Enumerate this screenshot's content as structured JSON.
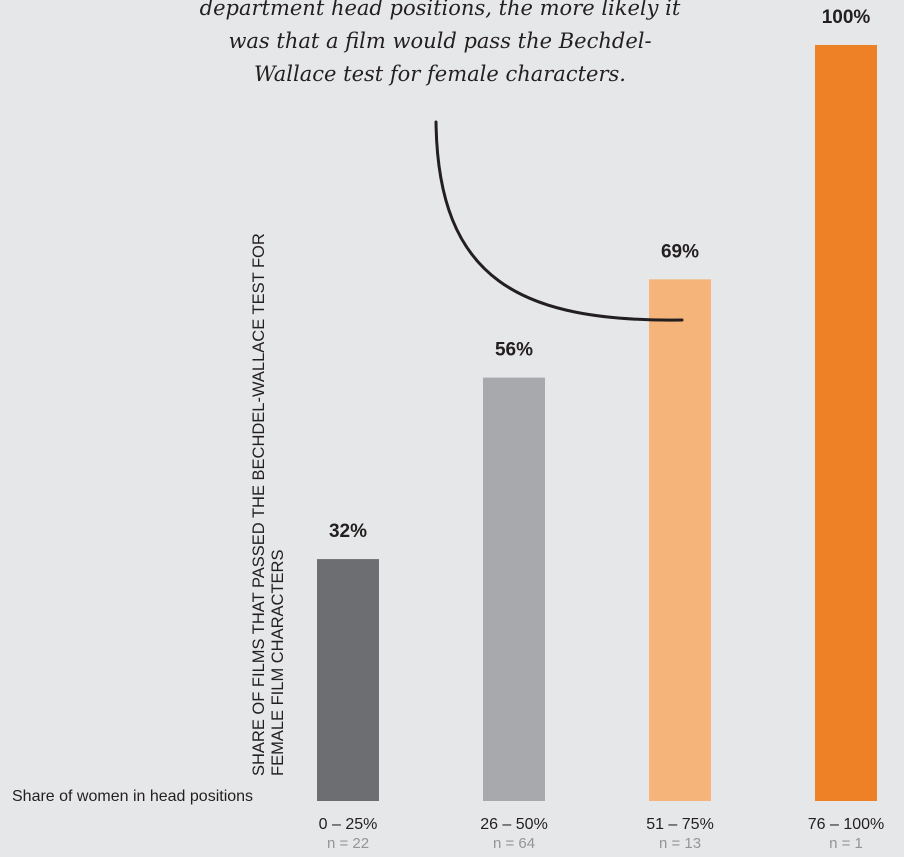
{
  "annotation": {
    "lines": [
      "department head positions, the more likely it",
      "was that a film would pass the Bechdel-",
      "Wallace test for female characters."
    ]
  },
  "chart_data": {
    "type": "bar",
    "title": "",
    "ylabel": "SHARE OF FILMS THAT PASSED THE BECHDEL-WALLACE TEST FOR FEMALE FILM CHARACTERS",
    "xlabel": "Share of women in head positions",
    "categories": [
      "0 – 25%",
      "26 – 50%",
      "51 – 75%",
      "76 – 100%"
    ],
    "sample_sizes": [
      "n = 22",
      "n = 64",
      "n = 13",
      "n = 1"
    ],
    "values": [
      32,
      56,
      69,
      100
    ],
    "value_labels": [
      "32%",
      "56%",
      "69%",
      "100%"
    ],
    "colors": [
      "#6d6e71",
      "#a7a9ac",
      "#f5b47a",
      "#ee8125"
    ],
    "ylim": [
      0,
      100
    ],
    "grid": false
  }
}
